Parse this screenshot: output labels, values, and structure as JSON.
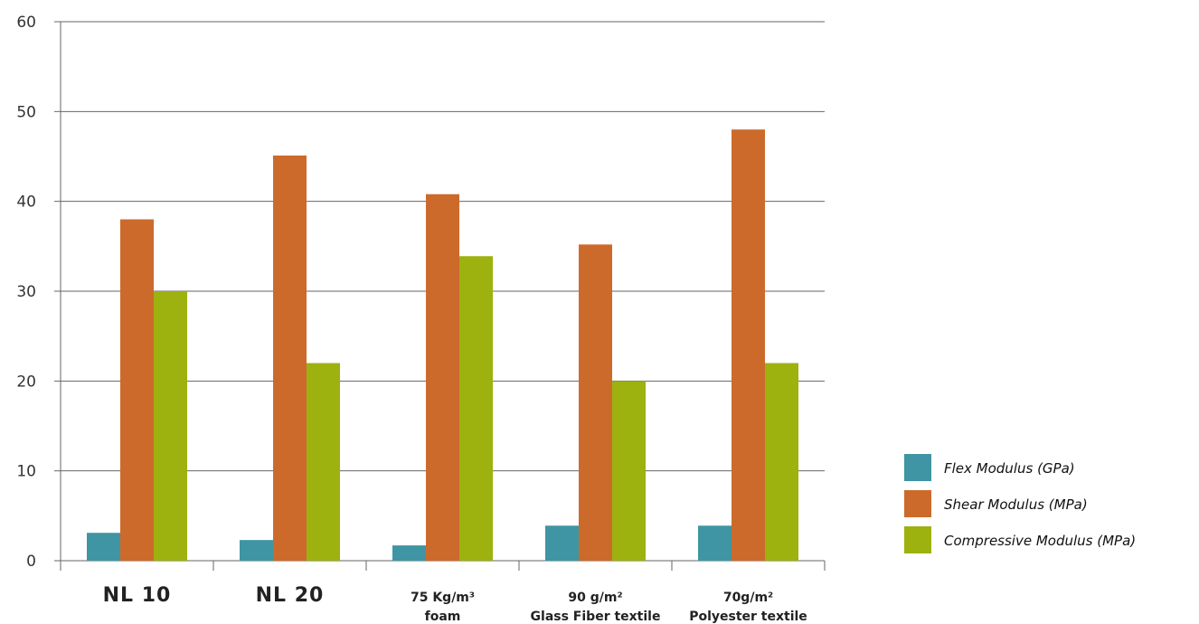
{
  "chart_data": {
    "type": "bar",
    "categories": [
      {
        "lines": [
          "NL 10"
        ],
        "style": "large"
      },
      {
        "lines": [
          "NL 20"
        ],
        "style": "large"
      },
      {
        "lines": [
          "75 Kg/m³",
          "foam"
        ],
        "style": "small"
      },
      {
        "lines": [
          "90 g/m²",
          "Glass Fiber textile"
        ],
        "style": "small"
      },
      {
        "lines": [
          "70g/m²",
          "Polyester textile"
        ],
        "style": "small"
      }
    ],
    "series": [
      {
        "name": "Flex Modulus (GPa)",
        "color": "#3f95a3",
        "values": [
          3.1,
          2.3,
          1.7,
          3.9,
          3.9
        ]
      },
      {
        "name": "Shear Modulus (MPa)",
        "color": "#cc6a2c",
        "values": [
          38,
          45.1,
          40.8,
          35.2,
          48
        ]
      },
      {
        "name": "Compressive Modulus (MPa)",
        "color": "#9db10f",
        "values": [
          30,
          22,
          33.9,
          20,
          22
        ]
      }
    ],
    "yticks": [
      0,
      10,
      20,
      30,
      40,
      50,
      60
    ],
    "ylim": [
      0,
      60
    ],
    "grid": true,
    "legend_position": "right",
    "title": "",
    "xlabel": "",
    "ylabel": ""
  }
}
